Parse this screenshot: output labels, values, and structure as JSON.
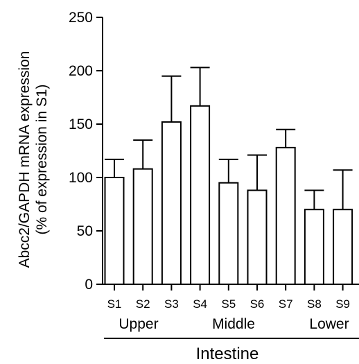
{
  "chart_data": {
    "type": "bar",
    "categories": [
      "S1",
      "S2",
      "S3",
      "S4",
      "S5",
      "S6",
      "S7",
      "S8",
      "S9"
    ],
    "values": [
      100,
      108,
      152,
      167,
      95,
      88,
      128,
      70,
      70
    ],
    "errors": [
      17,
      27,
      43,
      36,
      22,
      33,
      17,
      18,
      37
    ],
    "ylabel_line1": "Abcc2/GAPDH mRNA expression",
    "ylabel_line2": "(% of expression in S1)",
    "xlabel": "Intestine",
    "groups": [
      "Upper",
      "Middle",
      "Lower"
    ],
    "ylim": [
      0,
      250
    ],
    "yticks": [
      0,
      50,
      100,
      150,
      200,
      250
    ],
    "bar_fill": "#ffffff",
    "bar_stroke": "#000000",
    "grid": false
  }
}
